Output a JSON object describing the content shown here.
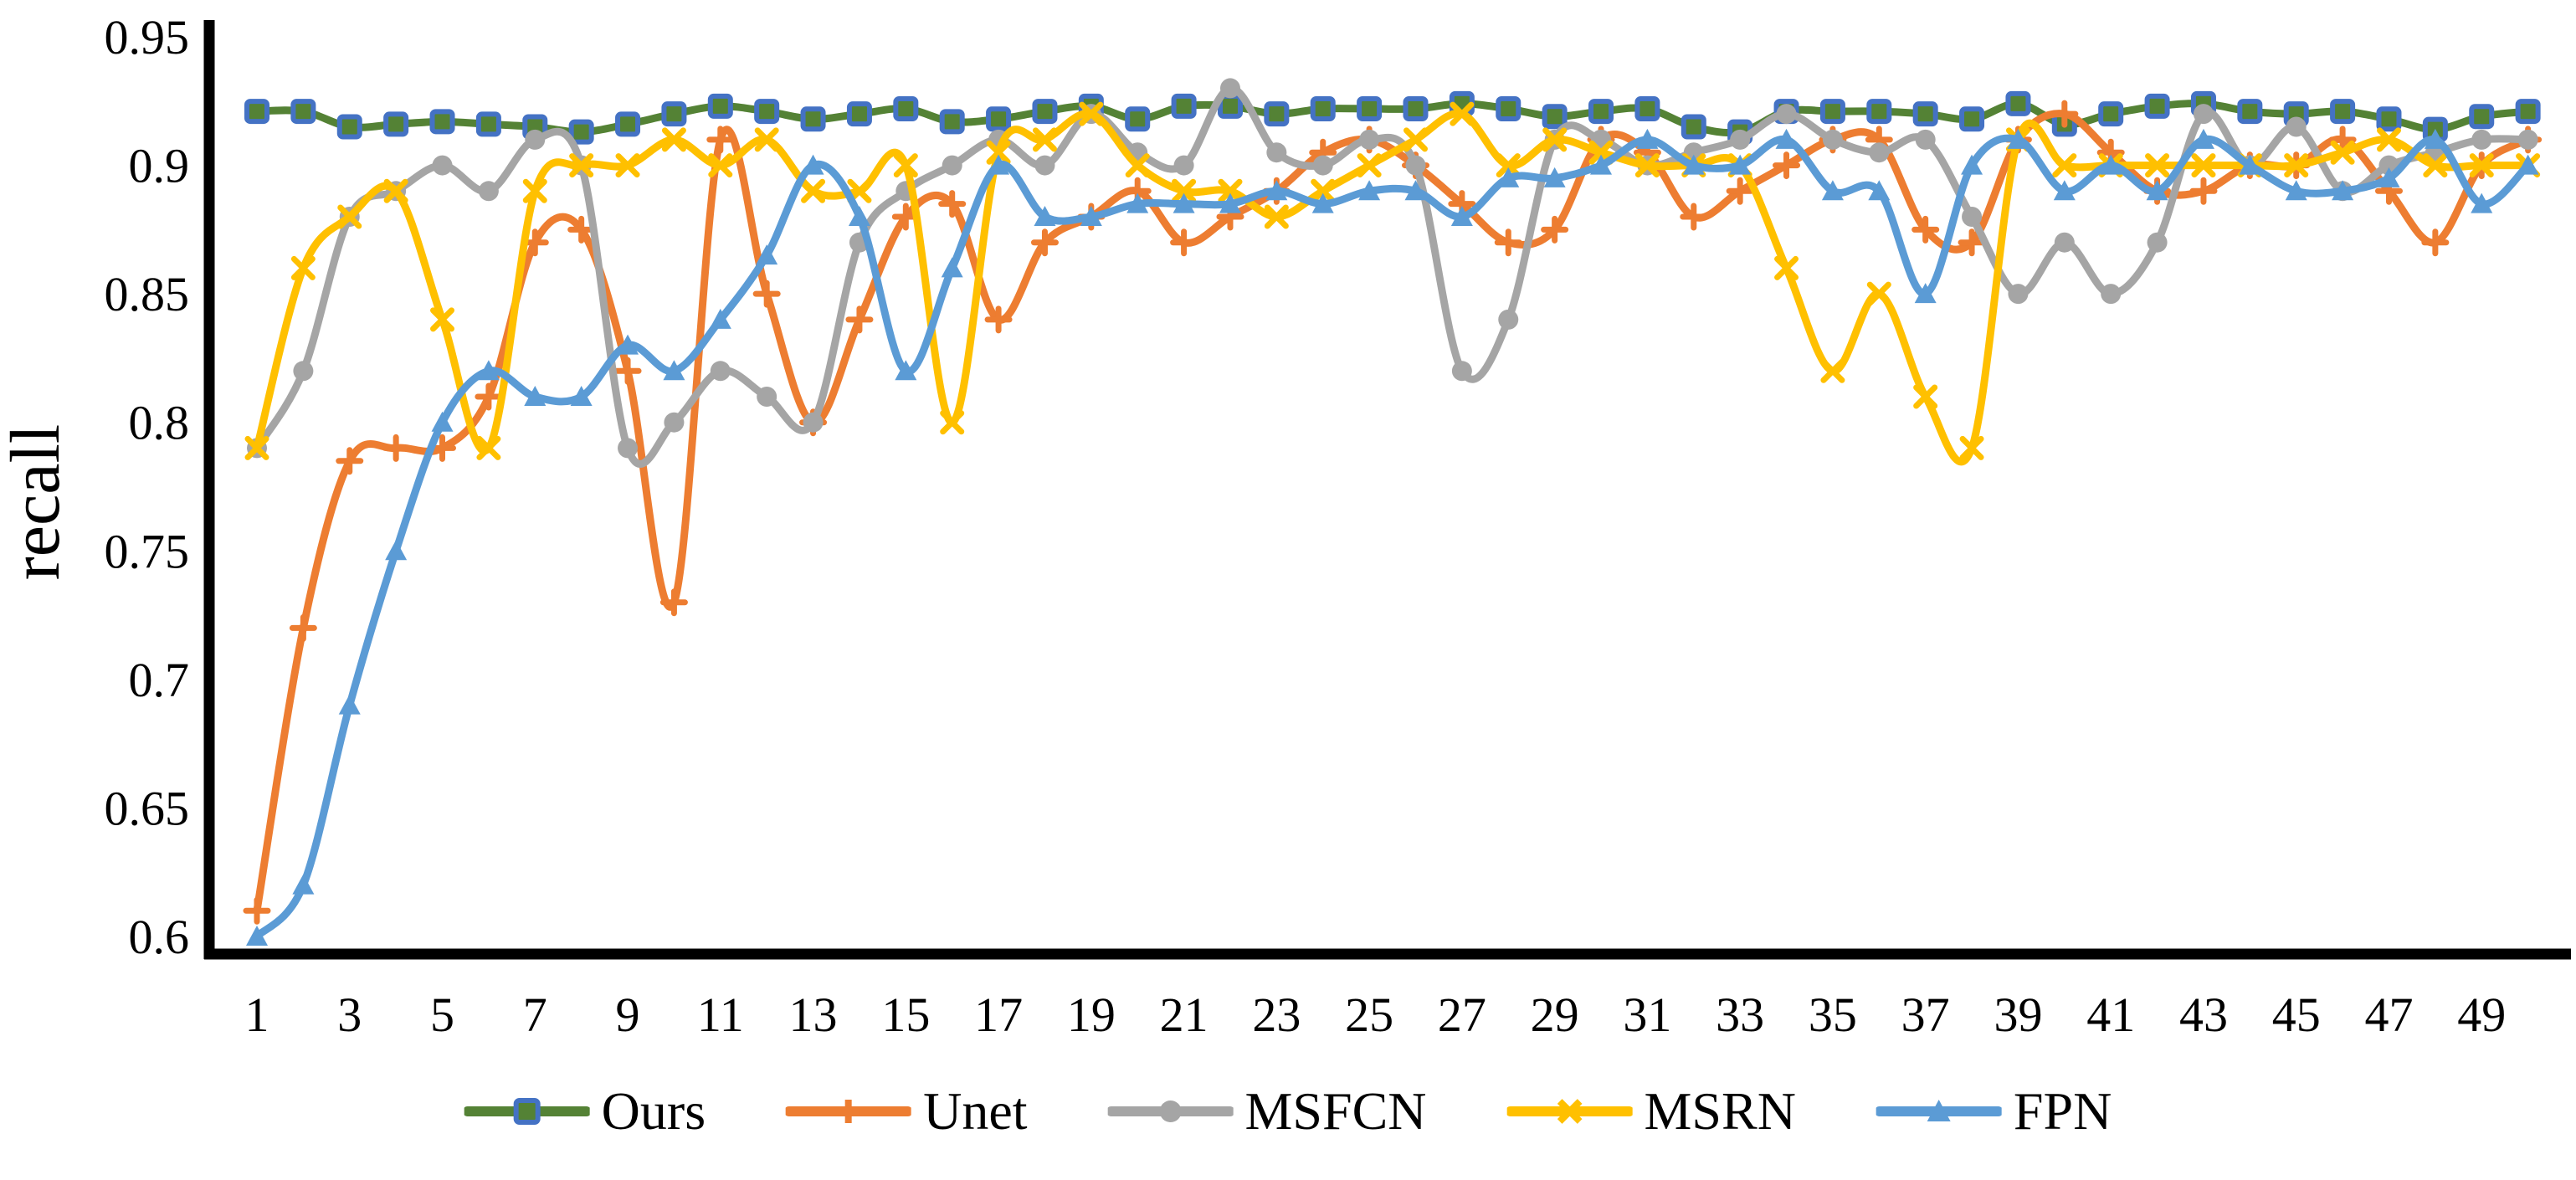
{
  "chart_data": {
    "type": "line",
    "title": "",
    "xlabel": "",
    "ylabel": "recall",
    "ylim": [
      0.6,
      0.95
    ],
    "grid": false,
    "legend_position": "bottom",
    "x": [
      1,
      2,
      3,
      4,
      5,
      6,
      7,
      8,
      9,
      10,
      11,
      12,
      13,
      14,
      15,
      16,
      17,
      18,
      19,
      20,
      21,
      22,
      23,
      24,
      25,
      26,
      27,
      28,
      29,
      30,
      31,
      32,
      33,
      34,
      35,
      36,
      37,
      38,
      39,
      40,
      41,
      42,
      43,
      44,
      45,
      46,
      47,
      48,
      49,
      50
    ],
    "x_tick_labels": [
      "1",
      "3",
      "5",
      "7",
      "9",
      "11",
      "13",
      "15",
      "17",
      "19",
      "21",
      "23",
      "25",
      "27",
      "29",
      "31",
      "33",
      "35",
      "37",
      "39",
      "41",
      "43",
      "45",
      "47",
      "49"
    ],
    "y_tick_labels": [
      "0.95",
      "0.9",
      "0.85",
      "0.8",
      "0.75",
      "0.7",
      "0.65",
      "0.6"
    ],
    "y_tick_values": [
      0.95,
      0.9,
      0.85,
      0.8,
      0.75,
      0.7,
      0.65,
      0.6
    ],
    "axis_color": "#000000",
    "series": [
      {
        "name": "Ours",
        "color": "#548235",
        "marker": "square-icon",
        "marker_color": "#4472C4",
        "values": [
          0.921,
          0.921,
          0.915,
          0.916,
          0.917,
          0.916,
          0.915,
          0.913,
          0.916,
          0.92,
          0.923,
          0.921,
          0.918,
          0.92,
          0.922,
          0.917,
          0.918,
          0.921,
          0.923,
          0.918,
          0.923,
          0.923,
          0.92,
          0.922,
          0.922,
          0.922,
          0.924,
          0.922,
          0.919,
          0.921,
          0.922,
          0.915,
          0.913,
          0.921,
          0.921,
          0.921,
          0.92,
          0.918,
          0.924,
          0.916,
          0.92,
          0.923,
          0.924,
          0.921,
          0.92,
          0.921,
          0.918,
          0.914,
          0.919,
          0.921
        ]
      },
      {
        "name": "Unet",
        "color": "#ED7D31",
        "marker": "plus-icon",
        "marker_color": "#ED7D31",
        "values": [
          0.61,
          0.72,
          0.785,
          0.79,
          0.79,
          0.81,
          0.87,
          0.875,
          0.82,
          0.73,
          0.91,
          0.85,
          0.8,
          0.84,
          0.88,
          0.885,
          0.84,
          0.87,
          0.88,
          0.89,
          0.87,
          0.88,
          0.89,
          0.905,
          0.91,
          0.9,
          0.885,
          0.87,
          0.875,
          0.91,
          0.905,
          0.88,
          0.89,
          0.9,
          0.91,
          0.91,
          0.875,
          0.87,
          0.91,
          0.92,
          0.905,
          0.89,
          0.89,
          0.9,
          0.9,
          0.91,
          0.89,
          0.87,
          0.9,
          0.91
        ]
      },
      {
        "name": "MSFCN",
        "color": "#A5A5A5",
        "marker": "circle-icon",
        "marker_color": "#A5A5A5",
        "values": [
          0.79,
          0.82,
          0.88,
          0.89,
          0.9,
          0.89,
          0.91,
          0.9,
          0.79,
          0.8,
          0.82,
          0.81,
          0.8,
          0.87,
          0.89,
          0.9,
          0.91,
          0.9,
          0.92,
          0.905,
          0.9,
          0.93,
          0.905,
          0.9,
          0.91,
          0.9,
          0.82,
          0.84,
          0.91,
          0.91,
          0.9,
          0.905,
          0.91,
          0.92,
          0.91,
          0.905,
          0.91,
          0.88,
          0.85,
          0.87,
          0.85,
          0.87,
          0.92,
          0.9,
          0.915,
          0.89,
          0.9,
          0.905,
          0.91,
          0.91
        ]
      },
      {
        "name": "MSRN",
        "color": "#FFC000",
        "marker": "x-icon",
        "marker_color": "#FFC000",
        "values": [
          0.79,
          0.86,
          0.88,
          0.89,
          0.84,
          0.79,
          0.89,
          0.9,
          0.9,
          0.91,
          0.9,
          0.91,
          0.89,
          0.89,
          0.9,
          0.8,
          0.905,
          0.91,
          0.92,
          0.9,
          0.89,
          0.89,
          0.88,
          0.89,
          0.9,
          0.91,
          0.92,
          0.9,
          0.91,
          0.905,
          0.9,
          0.9,
          0.9,
          0.86,
          0.82,
          0.85,
          0.81,
          0.79,
          0.91,
          0.9,
          0.9,
          0.9,
          0.9,
          0.9,
          0.9,
          0.905,
          0.91,
          0.9,
          0.9,
          0.9
        ]
      },
      {
        "name": "FPN",
        "color": "#5B9BD5",
        "marker": "triangle-icon",
        "marker_color": "#5B9BD5",
        "values": [
          0.6,
          0.62,
          0.69,
          0.75,
          0.8,
          0.82,
          0.81,
          0.81,
          0.83,
          0.82,
          0.84,
          0.865,
          0.9,
          0.88,
          0.82,
          0.86,
          0.9,
          0.88,
          0.88,
          0.885,
          0.885,
          0.885,
          0.89,
          0.885,
          0.89,
          0.89,
          0.88,
          0.895,
          0.895,
          0.9,
          0.91,
          0.9,
          0.9,
          0.91,
          0.89,
          0.89,
          0.85,
          0.9,
          0.91,
          0.89,
          0.9,
          0.89,
          0.91,
          0.9,
          0.89,
          0.89,
          0.895,
          0.91,
          0.885,
          0.9
        ]
      }
    ]
  }
}
